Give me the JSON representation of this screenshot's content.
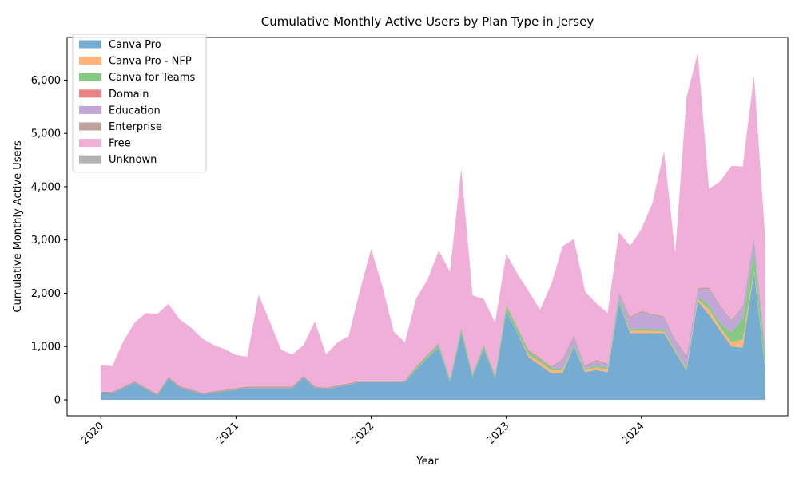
{
  "chart_data": {
    "type": "area",
    "stacked": true,
    "title": "Cumulative Monthly Active Users by Plan Type in Jersey",
    "xlabel": "Year",
    "ylabel": "Cumulative Monthly Active Users",
    "xlim": [
      "2019-10",
      "2025-02"
    ],
    "ylim": [
      -300,
      6800
    ],
    "x_ticks": [
      "2020",
      "2021",
      "2022",
      "2023",
      "2024"
    ],
    "y_ticks": [
      0,
      1000,
      2000,
      3000,
      4000,
      5000,
      6000
    ],
    "y_tick_labels": [
      "0",
      "1,000",
      "2,000",
      "3,000",
      "4,000",
      "5,000",
      "6,000"
    ],
    "legend_position": "upper-left",
    "grid": false,
    "x": [
      "2020-01",
      "2020-02",
      "2020-03",
      "2020-04",
      "2020-05",
      "2020-06",
      "2020-07",
      "2020-08",
      "2020-09",
      "2020-10",
      "2020-11",
      "2020-12",
      "2021-01",
      "2021-02",
      "2021-03",
      "2021-04",
      "2021-05",
      "2021-06",
      "2021-07",
      "2021-08",
      "2021-09",
      "2021-10",
      "2021-11",
      "2021-12",
      "2022-01",
      "2022-02",
      "2022-03",
      "2022-04",
      "2022-05",
      "2022-06",
      "2022-07",
      "2022-08",
      "2022-09",
      "2022-10",
      "2022-11",
      "2022-12",
      "2023-01",
      "2023-02",
      "2023-03",
      "2023-04",
      "2023-05",
      "2023-06",
      "2023-07",
      "2023-08",
      "2023-09",
      "2023-10",
      "2023-11",
      "2023-12",
      "2024-01",
      "2024-02",
      "2024-03",
      "2024-04",
      "2024-05",
      "2024-06",
      "2024-07",
      "2024-08",
      "2024-09",
      "2024-10",
      "2024-11",
      "2024-12"
    ],
    "series": [
      {
        "name": "Canva Pro",
        "color": "#76acd2",
        "values": [
          120,
          120,
          220,
          320,
          200,
          80,
          400,
          230,
          170,
          100,
          130,
          160,
          190,
          220,
          220,
          220,
          220,
          220,
          420,
          220,
          200,
          240,
          280,
          330,
          330,
          330,
          330,
          330,
          560,
          780,
          980,
          330,
          1250,
          420,
          950,
          400,
          1650,
          1250,
          800,
          650,
          500,
          500,
          1000,
          520,
          560,
          520,
          1820,
          1250,
          1250,
          1250,
          1250,
          900,
          550,
          1850,
          1600,
          1300,
          1000,
          980,
          2400,
          560
        ]
      },
      {
        "name": "Canva Pro - NFP",
        "color": "#ffb479",
        "values": [
          0,
          0,
          0,
          0,
          0,
          0,
          0,
          0,
          0,
          0,
          0,
          0,
          0,
          0,
          0,
          0,
          0,
          0,
          0,
          0,
          0,
          0,
          0,
          0,
          0,
          0,
          0,
          0,
          0,
          0,
          0,
          0,
          0,
          0,
          0,
          0,
          0,
          0,
          40,
          60,
          50,
          50,
          0,
          30,
          50,
          50,
          0,
          40,
          50,
          40,
          30,
          20,
          20,
          40,
          100,
          60,
          80,
          150,
          30,
          20
        ]
      },
      {
        "name": "Canva for Teams",
        "color": "#85c985",
        "values": [
          0,
          0,
          0,
          0,
          0,
          0,
          0,
          0,
          0,
          0,
          0,
          0,
          0,
          0,
          0,
          0,
          0,
          0,
          0,
          0,
          0,
          0,
          0,
          0,
          0,
          0,
          0,
          0,
          40,
          40,
          50,
          40,
          80,
          40,
          60,
          40,
          100,
          80,
          60,
          50,
          40,
          40,
          40,
          30,
          30,
          30,
          80,
          40,
          40,
          40,
          40,
          30,
          30,
          50,
          80,
          80,
          180,
          400,
          360,
          280
        ]
      },
      {
        "name": "Domain",
        "color": "#ea8585",
        "values": [
          0,
          0,
          0,
          0,
          0,
          0,
          0,
          0,
          0,
          0,
          0,
          0,
          0,
          0,
          0,
          0,
          0,
          0,
          0,
          0,
          0,
          0,
          0,
          0,
          0,
          0,
          0,
          0,
          0,
          0,
          0,
          0,
          0,
          0,
          0,
          0,
          0,
          0,
          0,
          0,
          0,
          0,
          0,
          0,
          0,
          0,
          0,
          0,
          0,
          0,
          0,
          0,
          0,
          0,
          0,
          0,
          0,
          0,
          0,
          0
        ]
      },
      {
        "name": "Education",
        "color": "#c1a6d8",
        "values": [
          0,
          0,
          0,
          0,
          0,
          0,
          0,
          0,
          0,
          0,
          0,
          0,
          0,
          0,
          0,
          0,
          0,
          0,
          0,
          0,
          0,
          0,
          0,
          0,
          0,
          0,
          0,
          0,
          0,
          0,
          0,
          0,
          0,
          0,
          0,
          0,
          0,
          0,
          0,
          0,
          0,
          150,
          150,
          30,
          80,
          50,
          100,
          200,
          300,
          250,
          220,
          150,
          200,
          130,
          300,
          300,
          200,
          200,
          270,
          120
        ]
      },
      {
        "name": "Enterprise",
        "color": "#bfa19a",
        "values": [
          30,
          30,
          30,
          30,
          30,
          30,
          30,
          30,
          30,
          30,
          30,
          30,
          30,
          30,
          30,
          30,
          30,
          30,
          30,
          30,
          30,
          30,
          30,
          30,
          30,
          30,
          30,
          30,
          30,
          30,
          30,
          30,
          30,
          30,
          30,
          30,
          30,
          30,
          30,
          30,
          30,
          30,
          30,
          30,
          30,
          30,
          30,
          30,
          30,
          30,
          30,
          30,
          30,
          30,
          30,
          30,
          30,
          30,
          30,
          30
        ]
      },
      {
        "name": "Free",
        "color": "#efafd9",
        "values": [
          500,
          480,
          850,
          1100,
          1400,
          1500,
          1370,
          1250,
          1160,
          1020,
          870,
          760,
          620,
          560,
          1720,
          1220,
          690,
          600,
          580,
          1220,
          620,
          810,
          880,
          1690,
          2470,
          1770,
          920,
          720,
          1270,
          1400,
          1740,
          2010,
          2980,
          1470,
          850,
          980,
          960,
          1000,
          1100,
          900,
          1550,
          2110,
          1800,
          1390,
          1060,
          950,
          1120,
          1330,
          1530,
          2100,
          3100,
          1630,
          4840,
          4410,
          1850,
          2330,
          2900,
          2620,
          3000,
          2000
        ]
      },
      {
        "name": "Unknown",
        "color": "#b3b3b3",
        "values": [
          0,
          0,
          0,
          0,
          0,
          0,
          0,
          0,
          0,
          0,
          0,
          0,
          0,
          0,
          0,
          0,
          0,
          0,
          0,
          0,
          0,
          0,
          0,
          0,
          0,
          0,
          0,
          0,
          0,
          0,
          0,
          0,
          0,
          0,
          0,
          0,
          0,
          0,
          0,
          0,
          0,
          0,
          0,
          0,
          0,
          0,
          0,
          0,
          0,
          0,
          0,
          0,
          0,
          0,
          0,
          0,
          0,
          0,
          0,
          0
        ]
      }
    ]
  }
}
